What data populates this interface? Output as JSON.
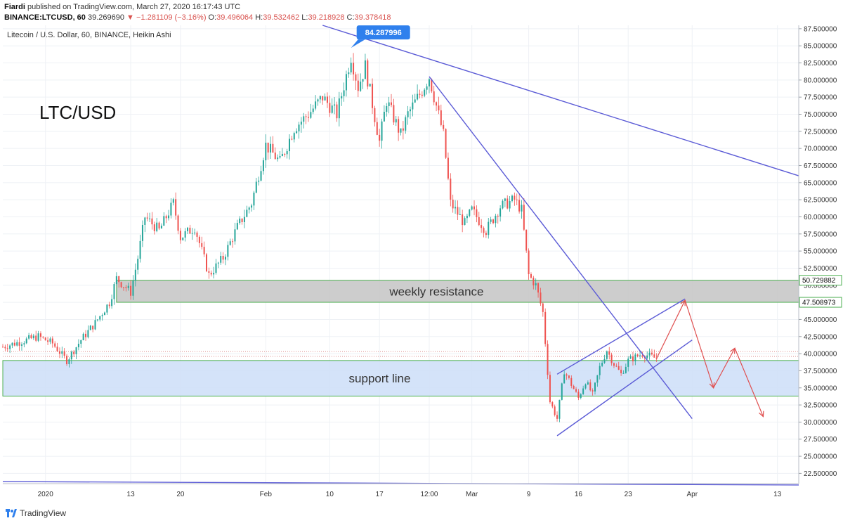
{
  "header": {
    "publisher": "Fiardi",
    "published_text": " published on TradingView.com, March 27, 2020 16:17:43 UTC",
    "symbol": "BINANCE:LTCUSD, 60",
    "last": "39.269690",
    "change": "−1.281109 (−3.16%)",
    "o_label": "O:",
    "o_value": "39.496064",
    "h_label": "H:",
    "h_value": "39.532462",
    "l_label": "L:",
    "l_value": "39.218928",
    "c_label": "C:",
    "c_value": "39.378418"
  },
  "footer": {
    "brand": "TradingView"
  },
  "colors": {
    "up": "#26a69a",
    "down": "#ef5350",
    "trendline": "#5b5bd6",
    "arrow": "#e05050",
    "resistance_fill": "#c8c8c8",
    "support_fill": "#cfe0f8",
    "zone_border": "#4caf50",
    "price_badge": "#2f80ed"
  },
  "chart_data": {
    "type": "candlestick",
    "title": "Litecoin / U.S. Dollar, 60, BINANCE, Heikin Ashi",
    "annotation_title": "LTC/USD",
    "ylim": [
      21.0,
      88.0
    ],
    "y_ticks": [
      22.5,
      25.0,
      27.5,
      30.0,
      32.5,
      35.0,
      37.5,
      40.0,
      42.5,
      45.0,
      47.5,
      50.0,
      52.5,
      55.0,
      57.5,
      60.0,
      62.5,
      65.0,
      67.5,
      70.0,
      72.5,
      75.0,
      77.5,
      80.0,
      82.5,
      85.0,
      87.5
    ],
    "y_tick_labels": [
      "22.500000",
      "25.000000",
      "27.500000",
      "30.000000",
      "32.500000",
      "35.000000",
      "37.500000",
      "40.000000",
      "42.500000",
      "45.000000",
      "47.500000",
      "50.000000",
      "52.500000",
      "55.000000",
      "57.500000",
      "60.000000",
      "62.500000",
      "65.000000",
      "67.500000",
      "70.000000",
      "72.500000",
      "75.000000",
      "77.500000",
      "80.000000",
      "82.500000",
      "85.000000",
      "87.500000"
    ],
    "x_range": [
      "2019-12-26",
      "2020-04-16"
    ],
    "x_ticks": [
      {
        "date": "2020-01-01",
        "label": "2020"
      },
      {
        "date": "2020-01-13",
        "label": "13"
      },
      {
        "date": "2020-01-20",
        "label": "20"
      },
      {
        "date": "2020-02-01",
        "label": "Feb"
      },
      {
        "date": "2020-02-10",
        "label": "10"
      },
      {
        "date": "2020-02-17",
        "label": "17"
      },
      {
        "date": "2020-02-24",
        "label": "12:00"
      },
      {
        "date": "2020-03-01",
        "label": "Mar"
      },
      {
        "date": "2020-03-09",
        "label": "9"
      },
      {
        "date": "2020-03-16",
        "label": "16"
      },
      {
        "date": "2020-03-23",
        "label": "23"
      },
      {
        "date": "2020-04-01",
        "label": "Apr"
      },
      {
        "date": "2020-04-13",
        "label": "13"
      }
    ],
    "price_path": [
      [
        "2019-12-26",
        41.0
      ],
      [
        "2019-12-31",
        42.5
      ],
      [
        "2020-01-02",
        41.5
      ],
      [
        "2020-01-04",
        39.0
      ],
      [
        "2020-01-06",
        42.0
      ],
      [
        "2020-01-08",
        44.5
      ],
      [
        "2020-01-10",
        47.5
      ],
      [
        "2020-01-11",
        51.0
      ],
      [
        "2020-01-13",
        49.0
      ],
      [
        "2020-01-14",
        54.0
      ],
      [
        "2020-01-15",
        60.0
      ],
      [
        "2020-01-17",
        58.0
      ],
      [
        "2020-01-19",
        62.0
      ],
      [
        "2020-01-20",
        57.0
      ],
      [
        "2020-01-22",
        58.5
      ],
      [
        "2020-01-24",
        51.5
      ],
      [
        "2020-01-26",
        54.0
      ],
      [
        "2020-01-28",
        58.5
      ],
      [
        "2020-01-30",
        62.0
      ],
      [
        "2020-02-01",
        70.5
      ],
      [
        "2020-02-03",
        68.0
      ],
      [
        "2020-02-05",
        73.0
      ],
      [
        "2020-02-07",
        75.0
      ],
      [
        "2020-02-09",
        77.5
      ],
      [
        "2020-02-11",
        75.0
      ],
      [
        "2020-02-13",
        83.5
      ],
      [
        "2020-02-14",
        79.0
      ],
      [
        "2020-02-15",
        82.0
      ],
      [
        "2020-02-17",
        71.0
      ],
      [
        "2020-02-18",
        77.0
      ],
      [
        "2020-02-20",
        72.0
      ],
      [
        "2020-02-21",
        75.0
      ],
      [
        "2020-02-23",
        78.5
      ],
      [
        "2020-02-24",
        80.5
      ],
      [
        "2020-02-26",
        72.0
      ],
      [
        "2020-02-27",
        62.0
      ],
      [
        "2020-02-29",
        59.0
      ],
      [
        "2020-03-01",
        61.0
      ],
      [
        "2020-03-03",
        58.0
      ],
      [
        "2020-03-05",
        61.5
      ],
      [
        "2020-03-07",
        62.5
      ],
      [
        "2020-03-08",
        61.0
      ],
      [
        "2020-03-09",
        51.5
      ],
      [
        "2020-03-10",
        50.0
      ],
      [
        "2020-03-11",
        46.0
      ],
      [
        "2020-03-12",
        33.0
      ],
      [
        "2020-03-13",
        30.5
      ],
      [
        "2020-03-14",
        37.5
      ],
      [
        "2020-03-16",
        33.5
      ],
      [
        "2020-03-17",
        36.0
      ],
      [
        "2020-03-18",
        34.0
      ],
      [
        "2020-03-19",
        38.0
      ],
      [
        "2020-03-20",
        40.5
      ],
      [
        "2020-03-21",
        38.5
      ],
      [
        "2020-03-22",
        37.0
      ],
      [
        "2020-03-23",
        39.0
      ],
      [
        "2020-03-25",
        40.0
      ],
      [
        "2020-03-27",
        39.3
      ]
    ],
    "peak_label": {
      "date": "2020-02-13",
      "value": 84.287996,
      "text": "84.287996"
    },
    "zones": [
      {
        "name": "weekly-resistance",
        "label": "weekly resistance",
        "x_from": "2020-01-11",
        "y_from": 47.508973,
        "y_to": 50.729882
      },
      {
        "name": "support-line",
        "label": "support line",
        "x_from": "2019-12-26",
        "y_from": 33.8,
        "y_to": 39.0
      }
    ],
    "price_badges": [
      {
        "value": 50.729882,
        "text": "50.729882",
        "style": "outline"
      },
      {
        "value": 47.508973,
        "text": "47.508973",
        "style": "outline"
      }
    ],
    "trendlines": [
      {
        "x1": "2020-02-09",
        "y1": 88.0,
        "x2": "2020-04-16",
        "y2": 66.0
      },
      {
        "x1": "2020-02-24",
        "y1": 80.5,
        "x2": "2020-04-01",
        "y2": 30.5
      },
      {
        "x1": "2020-03-13",
        "y1": 37.0,
        "x2": "2020-03-31",
        "y2": 48.0
      },
      {
        "x1": "2020-03-13",
        "y1": 28.0,
        "x2": "2020-04-01",
        "y2": 42.0
      },
      {
        "x1": "2019-12-26",
        "y1": 21.3,
        "x2": "2020-04-16",
        "y2": 20.8
      }
    ],
    "projection_path": [
      [
        "2020-03-27",
        39.3
      ],
      [
        "2020-03-31",
        47.8
      ],
      [
        "2020-04-04",
        35.0
      ],
      [
        "2020-04-07",
        40.8
      ],
      [
        "2020-04-11",
        30.8
      ]
    ],
    "dotted_levels": [
      39.6,
      40.3
    ]
  }
}
